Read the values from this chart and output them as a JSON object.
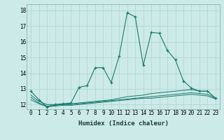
{
  "xlabel": "Humidex (Indice chaleur)",
  "background_color": "#cceae7",
  "line_color": "#1a7a6e",
  "grid_color": "#aed4ce",
  "xlim": [
    -0.5,
    23.5
  ],
  "ylim": [
    11.7,
    18.4
  ],
  "yticks": [
    12,
    13,
    14,
    15,
    16,
    17,
    18
  ],
  "xticks": [
    0,
    1,
    2,
    3,
    4,
    5,
    6,
    7,
    8,
    9,
    10,
    11,
    12,
    13,
    14,
    15,
    16,
    17,
    18,
    19,
    20,
    21,
    22,
    23
  ],
  "main_x": [
    0,
    1,
    2,
    3,
    4,
    5,
    6,
    7,
    8,
    9,
    10,
    11,
    12,
    13,
    14,
    15,
    16,
    17,
    18,
    19,
    20,
    21,
    22,
    23
  ],
  "main_y": [
    12.85,
    12.3,
    11.85,
    12.0,
    12.05,
    12.1,
    13.1,
    13.2,
    14.35,
    14.35,
    13.4,
    15.1,
    17.85,
    17.6,
    14.5,
    16.6,
    16.55,
    15.45,
    14.85,
    13.5,
    13.05,
    12.85,
    12.85,
    12.4
  ],
  "line2_x": [
    0,
    1,
    2,
    3,
    4,
    5,
    6,
    7,
    8,
    9,
    10,
    11,
    12,
    13,
    14,
    15,
    16,
    17,
    18,
    19,
    20,
    21,
    22,
    23
  ],
  "line2_y": [
    12.6,
    12.2,
    12.0,
    12.0,
    12.0,
    12.05,
    12.1,
    12.15,
    12.2,
    12.25,
    12.3,
    12.4,
    12.5,
    12.55,
    12.6,
    12.7,
    12.75,
    12.8,
    12.85,
    12.9,
    12.95,
    12.85,
    12.85,
    12.4
  ],
  "line3_x": [
    0,
    1,
    2,
    3,
    4,
    5,
    6,
    7,
    8,
    9,
    10,
    11,
    12,
    13,
    14,
    15,
    16,
    17,
    18,
    19,
    20,
    21,
    22,
    23
  ],
  "line3_y": [
    12.45,
    12.1,
    11.9,
    11.95,
    12.0,
    12.0,
    12.05,
    12.1,
    12.15,
    12.2,
    12.25,
    12.3,
    12.35,
    12.4,
    12.45,
    12.5,
    12.55,
    12.6,
    12.65,
    12.7,
    12.75,
    12.7,
    12.65,
    12.4
  ],
  "line4_x": [
    0,
    1,
    2,
    3,
    4,
    5,
    6,
    7,
    8,
    9,
    10,
    11,
    12,
    13,
    14,
    15,
    16,
    17,
    18,
    19,
    20,
    21,
    22,
    23
  ],
  "line4_y": [
    12.3,
    12.05,
    11.85,
    11.9,
    11.95,
    11.95,
    12.0,
    12.05,
    12.1,
    12.15,
    12.2,
    12.25,
    12.3,
    12.35,
    12.4,
    12.4,
    12.45,
    12.5,
    12.55,
    12.6,
    12.65,
    12.6,
    12.55,
    12.35
  ],
  "xlabel_fontsize": 6.5,
  "tick_fontsize": 5.5
}
